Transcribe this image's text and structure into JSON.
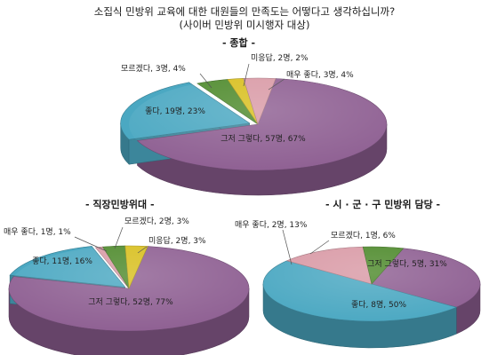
{
  "header": {
    "title": "소집식 민방위 교육에 대한 대원들의 만족도는 어떻다고 생각하십니까?",
    "subtitle": "(사이버 민방위 미시행자 대상)"
  },
  "colors": {
    "매우 좋다": "#d99aa6",
    "좋다": "#4ba8c2",
    "그저 그렇다": "#8e5f92",
    "모르겠다": "#4e8a2c",
    "미응답": "#d8bf1e"
  },
  "chart_data": [
    {
      "type": "pie",
      "title": "- 종합 -",
      "slices": [
        {
          "label": "그저 그렇다",
          "count": 57,
          "unit": "명",
          "percent": 67,
          "text": "그저 그렇다, 57명, 67%"
        },
        {
          "label": "좋다",
          "count": 19,
          "unit": "명",
          "percent": 23,
          "text": "좋다, 19명, 23%"
        },
        {
          "label": "모르겠다",
          "count": 3,
          "unit": "명",
          "percent": 4,
          "text": "모르겠다, 3명, 4%"
        },
        {
          "label": "미응답",
          "count": 2,
          "unit": "명",
          "percent": 2,
          "text": "미응답, 2명, 2%"
        },
        {
          "label": "매우 좋다",
          "count": 3,
          "unit": "명",
          "percent": 4,
          "text": "매우 좋다, 3명, 4%"
        }
      ]
    },
    {
      "type": "pie",
      "title": "- 직장민방위대 -",
      "slices": [
        {
          "label": "그저 그렇다",
          "count": 52,
          "unit": "명",
          "percent": 77,
          "text": "그저 그렇다, 52명, 77%"
        },
        {
          "label": "좋다",
          "count": 11,
          "unit": "명",
          "percent": 16,
          "text": "좋다, 11명, 16%"
        },
        {
          "label": "매우 좋다",
          "count": 1,
          "unit": "명",
          "percent": 1,
          "text": "매우 좋다, 1명, 1%"
        },
        {
          "label": "모르겠다",
          "count": 2,
          "unit": "명",
          "percent": 3,
          "text": "모르겠다, 2명, 3%"
        },
        {
          "label": "미응답",
          "count": 2,
          "unit": "명",
          "percent": 3,
          "text": "미응답, 2명, 3%"
        }
      ]
    },
    {
      "type": "pie",
      "title": "- 시 · 군 · 구 민방위 담당 -",
      "slices": [
        {
          "label": "그저 그렇다",
          "count": 5,
          "unit": "명",
          "percent": 31,
          "text": "그저 그렇다, 5명, 31%"
        },
        {
          "label": "좋다",
          "count": 8,
          "unit": "명",
          "percent": 50,
          "text": "좋다, 8명, 50%"
        },
        {
          "label": "매우 좋다",
          "count": 2,
          "unit": "명",
          "percent": 13,
          "text": "매우 좋다, 2명, 13%"
        },
        {
          "label": "모르겠다",
          "count": 1,
          "unit": "명",
          "percent": 6,
          "text": "모르겠다, 1명, 6%"
        }
      ]
    }
  ]
}
